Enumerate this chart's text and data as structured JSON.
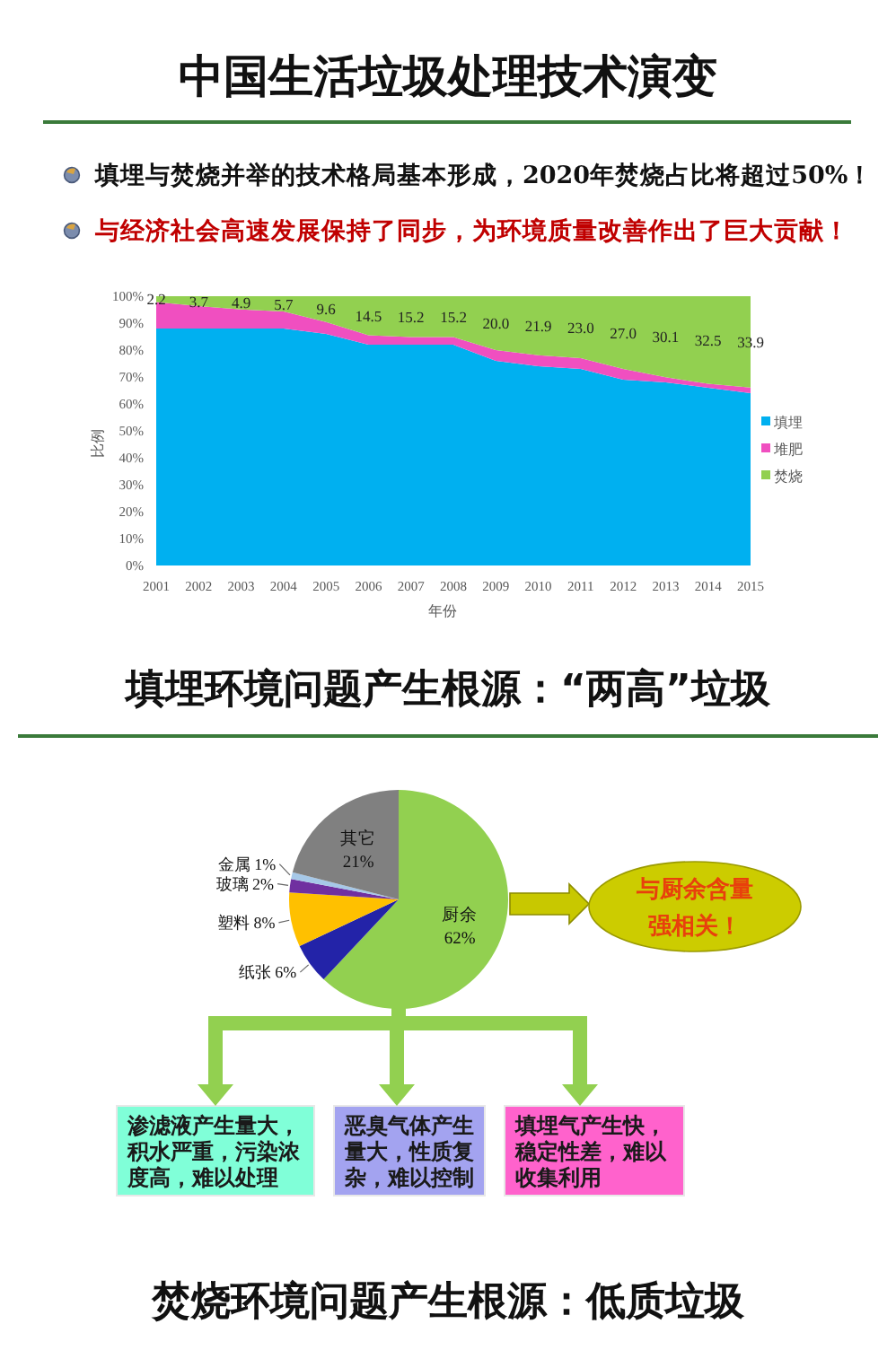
{
  "chart_data": [
    {
      "type": "area",
      "stacked": true,
      "title": "中国生活垃圾处理技术演变",
      "annotations": [
        "填埋与焚烧并举的技术格局基本形成，2020年焚烧占比将超过50%！",
        "与经济社会高速发展保持了同步，为环境质量改善作出了巨大贡献！"
      ],
      "categories": [
        "2001",
        "2002",
        "2003",
        "2004",
        "2005",
        "2006",
        "2007",
        "2008",
        "2009",
        "2010",
        "2011",
        "2012",
        "2013",
        "2014",
        "2015"
      ],
      "xlabel": "年份",
      "ylabel": "比例",
      "ylim": [
        0,
        100
      ],
      "yticks": [
        {
          "value": 0,
          "label": "0%"
        },
        {
          "value": 10,
          "label": "10%"
        },
        {
          "value": 20,
          "label": "20%"
        },
        {
          "value": 30,
          "label": "30%"
        },
        {
          "value": 40,
          "label": "40%"
        },
        {
          "value": 50,
          "label": "50%"
        },
        {
          "value": 60,
          "label": "60%"
        },
        {
          "value": 70,
          "label": "70%"
        },
        {
          "value": 80,
          "label": "80%"
        },
        {
          "value": 90,
          "label": "90%"
        },
        {
          "value": 100,
          "label": "100%"
        }
      ],
      "legend": "right",
      "series": [
        {
          "name": "填埋",
          "color": "#00b0f0",
          "values": [
            88,
            88,
            88,
            88,
            86,
            82,
            82,
            82,
            76,
            74,
            73,
            69,
            68,
            66,
            64
          ]
        },
        {
          "name": "堆肥",
          "color": "#f04fc0",
          "values": [
            9.8,
            8.3,
            7.1,
            6.3,
            4.4,
            3.5,
            2.8,
            2.8,
            4.0,
            4.1,
            4.0,
            4.0,
            1.9,
            1.5,
            2.1
          ]
        },
        {
          "name": "焚烧",
          "color": "#92d050",
          "values": [
            2.2,
            3.7,
            4.9,
            5.7,
            9.6,
            14.5,
            15.2,
            15.2,
            20.0,
            21.9,
            23.0,
            27.0,
            30.1,
            32.5,
            33.9
          ],
          "value_labels": [
            "2.2",
            "3.7",
            "4.9",
            "5.7",
            "9.6",
            "14.5",
            "15.2",
            "15.2",
            "20.0",
            "21.9",
            "23.0",
            "27.0",
            "30.1",
            "32.5",
            "33.9"
          ]
        }
      ]
    },
    {
      "type": "pie",
      "title": "填埋环境问题产生根源：“两高”垃圾",
      "categories": [
        "厨余",
        "纸张",
        "塑料",
        "玻璃",
        "金属",
        "其它"
      ],
      "values": [
        62,
        6,
        8,
        2,
        1,
        21
      ],
      "value_labels": [
        "62%",
        "6%",
        "8%",
        "2%",
        "1%",
        "21%"
      ],
      "colors": [
        "#92d050",
        "#2323a8",
        "#ffc000",
        "#7030a0",
        "#a6c8e8",
        "#808080"
      ],
      "annotations": [
        "与厨余含量强相关！",
        "渗滤液产生量大，积水严重，污染浓度高，难以处理",
        "恶臭气体产生量大，性质复杂，难以控制",
        "填埋气产生快，稳定性差，难以收集利用",
        "焚烧环境问题产生根源：低质垃圾"
      ]
    }
  ]
}
